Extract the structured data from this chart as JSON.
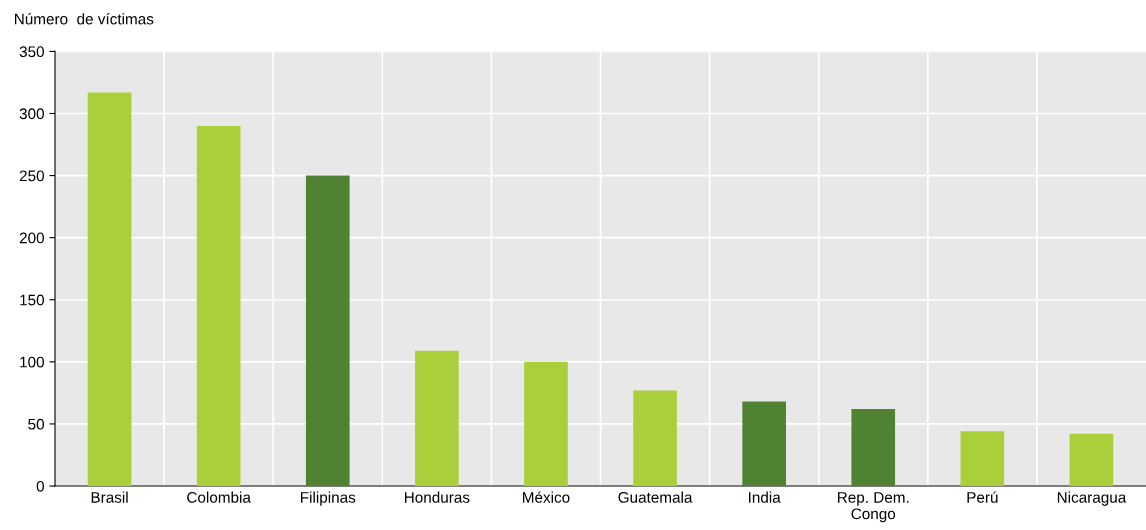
{
  "chart_data": {
    "type": "bar",
    "ylabel": "Número  de víctimas",
    "categories": [
      "Brasil",
      "Colombia",
      "Filipinas",
      "Honduras",
      "México",
      "Guatemala",
      "India",
      "Rep. Dem.\nCongo",
      "Perú",
      "Nicaragua"
    ],
    "values": [
      317,
      290,
      250,
      109,
      100,
      77,
      68,
      62,
      44,
      42
    ],
    "colors": [
      "#a9cf3b",
      "#a9cf3b",
      "#4f8232",
      "#a9cf3b",
      "#a9cf3b",
      "#a9cf3b",
      "#4f8232",
      "#4f8232",
      "#a9cf3b",
      "#a9cf3b"
    ],
    "ylim": [
      0,
      350
    ],
    "yticks": [
      0,
      50,
      100,
      150,
      200,
      250,
      300,
      350
    ],
    "grid": true
  }
}
